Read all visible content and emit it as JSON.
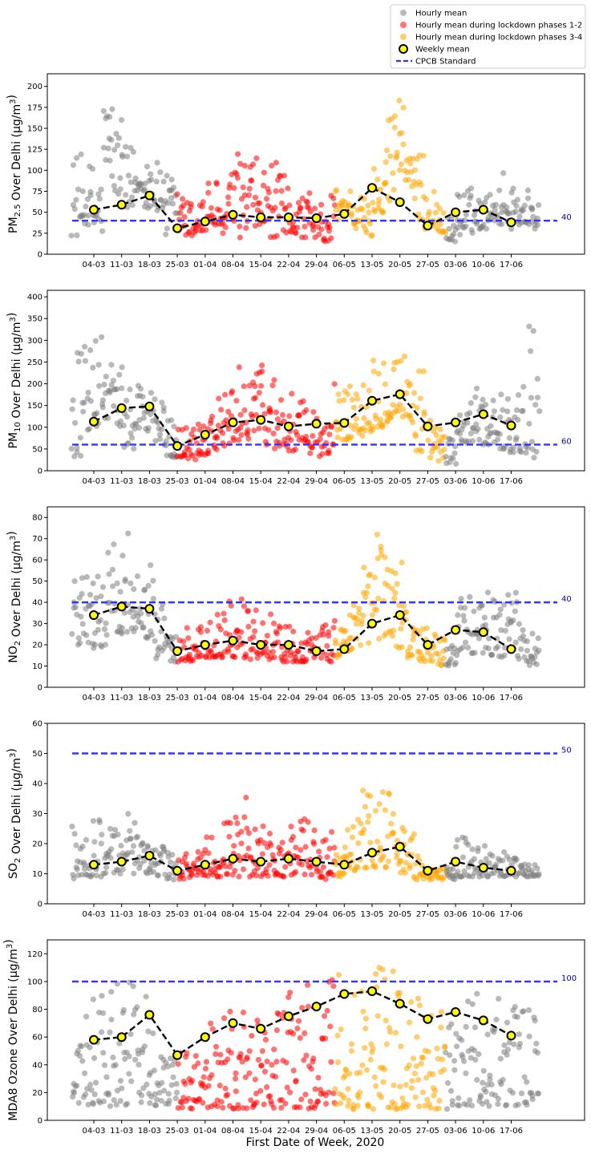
{
  "colors": {
    "hourly": "#808080",
    "lockdown_1_2": "#ff0000",
    "lockdown_3_4": "#ffa500",
    "weekly_fill": "#ffff00",
    "standard": "#3333ff",
    "standard_label": "#0000cc"
  },
  "legend": {
    "items": [
      {
        "key": "hourly",
        "label": "Hourly mean"
      },
      {
        "key": "lockdown_1_2",
        "label": "Hourly mean during lockdown phases 1-2"
      },
      {
        "key": "lockdown_3_4",
        "label": "Hourly mean during lockdown phases 3-4"
      },
      {
        "key": "weekly",
        "label": "Weekly mean"
      },
      {
        "key": "standard",
        "label": "CPCB Standard"
      }
    ]
  },
  "xlabel": "First Date of Week, 2020",
  "chart_data": [
    {
      "type": "scatter",
      "ylabel_prefix": "PM",
      "ylabel_sub": "2.5",
      "ylabel_suffix": " Over Delhi (μg/m",
      "ylabel_sup": "3",
      "ylabel_end": ")",
      "ylim": [
        0,
        215
      ],
      "yticks": [
        "0",
        "25",
        "50",
        "75",
        "100",
        "125",
        "150",
        "175",
        "200"
      ],
      "categories": [
        "04-03",
        "11-03",
        "18-03",
        "25-03",
        "01-04",
        "08-04",
        "15-04",
        "22-04",
        "29-04",
        "06-05",
        "13-05",
        "20-05",
        "27-05",
        "03-06",
        "10-06",
        "17-06"
      ],
      "weekly_mean": [
        53,
        59,
        70,
        31,
        39,
        47,
        44,
        44,
        43,
        48,
        79,
        62,
        34,
        50,
        53,
        38
      ],
      "standard": 40,
      "standard_label": "40",
      "hourly_pattern": [
        [
          22,
          120
        ],
        [
          35,
          110
        ],
        [
          25,
          100
        ],
        [
          90,
          190
        ],
        [
          70,
          160
        ],
        [
          40,
          130
        ],
        [
          75,
          95
        ],
        [
          55,
          130
        ],
        [
          50,
          110
        ],
        [
          20,
          95
        ],
        [
          25,
          80
        ],
        [
          20,
          65
        ],
        [
          25,
          75
        ],
        [
          30,
          90
        ],
        [
          25,
          60
        ],
        [
          35,
          100
        ],
        [
          20,
          125
        ],
        [
          25,
          115
        ],
        [
          30,
          105
        ],
        [
          20,
          110
        ],
        [
          15,
          95
        ],
        [
          25,
          70
        ],
        [
          20,
          75
        ],
        [
          20,
          60
        ],
        [
          15,
          45
        ],
        [
          40,
          80
        ],
        [
          45,
          80
        ],
        [
          30,
          75
        ],
        [
          20,
          70
        ],
        [
          50,
          110
        ],
        [
          60,
          180
        ],
        [
          100,
          200
        ],
        [
          80,
          150
        ],
        [
          30,
          120
        ],
        [
          30,
          85
        ],
        [
          25,
          60
        ],
        [
          15,
          45
        ],
        [
          20,
          80
        ],
        [
          25,
          80
        ],
        [
          30,
          70
        ],
        [
          40,
          75
        ],
        [
          35,
          100
        ],
        [
          30,
          90
        ],
        [
          35,
          80
        ],
        [
          30,
          65
        ]
      ]
    },
    {
      "type": "scatter",
      "ylabel_prefix": "PM",
      "ylabel_sub": "10",
      "ylabel_suffix": " Over Delhi (μg/m",
      "ylabel_sup": "3",
      "ylabel_end": ")",
      "ylim": [
        0,
        415
      ],
      "yticks": [
        "0",
        "50",
        "100",
        "150",
        "200",
        "250",
        "300",
        "350",
        "400"
      ],
      "categories": [
        "04-03",
        "11-03",
        "18-03",
        "25-03",
        "01-04",
        "08-04",
        "15-04",
        "22-04",
        "29-04",
        "06-05",
        "13-05",
        "20-05",
        "27-05",
        "03-06",
        "10-06",
        "17-06"
      ],
      "weekly_mean": [
        113,
        144,
        148,
        57,
        83,
        111,
        117,
        102,
        108,
        110,
        161,
        176,
        102,
        111,
        130,
        104
      ],
      "standard": 60,
      "standard_label": "60",
      "hourly_pattern": [
        [
          30,
          280
        ],
        [
          90,
          300
        ],
        [
          100,
          310
        ],
        [
          120,
          260
        ],
        [
          100,
          240
        ],
        [
          50,
          200
        ],
        [
          90,
          220
        ],
        [
          80,
          200
        ],
        [
          60,
          160
        ],
        [
          30,
          120
        ],
        [
          30,
          110
        ],
        [
          25,
          110
        ],
        [
          35,
          140
        ],
        [
          40,
          160
        ],
        [
          50,
          180
        ],
        [
          60,
          200
        ],
        [
          70,
          240
        ],
        [
          80,
          300
        ],
        [
          60,
          250
        ],
        [
          50,
          240
        ],
        [
          40,
          200
        ],
        [
          40,
          180
        ],
        [
          40,
          160
        ],
        [
          30,
          150
        ],
        [
          30,
          110
        ],
        [
          60,
          220
        ],
        [
          70,
          200
        ],
        [
          80,
          220
        ],
        [
          90,
          260
        ],
        [
          100,
          280
        ],
        [
          110,
          300
        ],
        [
          120,
          300
        ],
        [
          100,
          280
        ],
        [
          40,
          270
        ],
        [
          30,
          120
        ],
        [
          20,
          100
        ],
        [
          15,
          80
        ],
        [
          60,
          150
        ],
        [
          60,
          170
        ],
        [
          60,
          190
        ],
        [
          60,
          200
        ],
        [
          50,
          180
        ],
        [
          40,
          170
        ],
        [
          40,
          200
        ],
        [
          30,
          360
        ]
      ]
    },
    {
      "type": "scatter",
      "ylabel_prefix": "NO",
      "ylabel_sub": "2",
      "ylabel_suffix": " Over Delhi (μg/m",
      "ylabel_sup": "3",
      "ylabel_end": ")",
      "ylim": [
        0,
        85
      ],
      "yticks": [
        "0",
        "10",
        "20",
        "30",
        "40",
        "50",
        "60",
        "70",
        "80"
      ],
      "categories": [
        "04-03",
        "11-03",
        "18-03",
        "25-03",
        "01-04",
        "08-04",
        "15-04",
        "22-04",
        "29-04",
        "06-05",
        "13-05",
        "20-05",
        "27-05",
        "03-06",
        "10-06",
        "17-06"
      ],
      "weekly_mean": [
        34,
        38,
        37,
        17,
        20,
        22,
        20,
        20,
        17,
        18,
        30,
        34,
        20,
        27,
        26,
        18
      ],
      "standard": 40,
      "standard_label": "40",
      "hourly_pattern": [
        [
          20,
          65
        ],
        [
          20,
          55
        ],
        [
          18,
          60
        ],
        [
          20,
          65
        ],
        [
          25,
          70
        ],
        [
          25,
          78
        ],
        [
          28,
          70
        ],
        [
          20,
          60
        ],
        [
          12,
          45
        ],
        [
          12,
          25
        ],
        [
          12,
          25
        ],
        [
          12,
          28
        ],
        [
          14,
          30
        ],
        [
          14,
          32
        ],
        [
          14,
          40
        ],
        [
          14,
          45
        ],
        [
          14,
          42
        ],
        [
          13,
          40
        ],
        [
          14,
          40
        ],
        [
          13,
          38
        ],
        [
          12,
          30
        ],
        [
          12,
          28
        ],
        [
          12,
          28
        ],
        [
          12,
          25
        ],
        [
          12,
          30
        ],
        [
          14,
          32
        ],
        [
          16,
          40
        ],
        [
          18,
          42
        ],
        [
          20,
          60
        ],
        [
          22,
          78
        ],
        [
          24,
          75
        ],
        [
          18,
          65
        ],
        [
          14,
          40
        ],
        [
          12,
          30
        ],
        [
          12,
          28
        ],
        [
          10,
          25
        ],
        [
          10,
          22
        ],
        [
          15,
          45
        ],
        [
          16,
          45
        ],
        [
          16,
          40
        ],
        [
          15,
          45
        ],
        [
          14,
          50
        ],
        [
          14,
          45
        ],
        [
          12,
          30
        ],
        [
          10,
          28
        ]
      ]
    },
    {
      "type": "scatter",
      "ylabel_prefix": "SO",
      "ylabel_sub": "2",
      "ylabel_suffix": " Over Delhi (μg/m",
      "ylabel_sup": "3",
      "ylabel_end": ")",
      "ylim": [
        0,
        60
      ],
      "yticks": [
        "0",
        "10",
        "20",
        "30",
        "40",
        "50",
        "60"
      ],
      "categories": [
        "04-03",
        "11-03",
        "18-03",
        "25-03",
        "01-04",
        "08-04",
        "15-04",
        "22-04",
        "29-04",
        "06-05",
        "13-05",
        "20-05",
        "27-05",
        "03-06",
        "10-06",
        "17-06"
      ],
      "weekly_mean": [
        13,
        14,
        16,
        11,
        13,
        15,
        14,
        15,
        14,
        13,
        17,
        19,
        11,
        14,
        12,
        11
      ],
      "standard": 50,
      "standard_label": "50",
      "hourly_pattern": [
        [
          8,
          27
        ],
        [
          9,
          22
        ],
        [
          9,
          30
        ],
        [
          10,
          25
        ],
        [
          10,
          28
        ],
        [
          10,
          30
        ],
        [
          11,
          28
        ],
        [
          10,
          26
        ],
        [
          9,
          20
        ],
        [
          8,
          17
        ],
        [
          8,
          17
        ],
        [
          8,
          18
        ],
        [
          9,
          20
        ],
        [
          9,
          25
        ],
        [
          9,
          28
        ],
        [
          9,
          30
        ],
        [
          9,
          40
        ],
        [
          9,
          32
        ],
        [
          9,
          28
        ],
        [
          9,
          25
        ],
        [
          9,
          24
        ],
        [
          9,
          26
        ],
        [
          9,
          30
        ],
        [
          8,
          25
        ],
        [
          8,
          22
        ],
        [
          9,
          25
        ],
        [
          10,
          25
        ],
        [
          11,
          30
        ],
        [
          12,
          38
        ],
        [
          12,
          42
        ],
        [
          12,
          40
        ],
        [
          10,
          30
        ],
        [
          9,
          25
        ],
        [
          8,
          18
        ],
        [
          8,
          14
        ],
        [
          8,
          12
        ],
        [
          8,
          12
        ],
        [
          9,
          25
        ],
        [
          9,
          22
        ],
        [
          9,
          20
        ],
        [
          9,
          18
        ],
        [
          9,
          18
        ],
        [
          9,
          16
        ],
        [
          9,
          14
        ],
        [
          9,
          13
        ]
      ]
    },
    {
      "type": "scatter",
      "ylabel_prefix": "MDA8 Ozone Over Delhi (μg/m",
      "ylabel_sub": "",
      "ylabel_suffix": "",
      "ylabel_sup": "3",
      "ylabel_end": ")",
      "ylim": [
        0,
        130
      ],
      "yticks": [
        "0",
        "20",
        "40",
        "60",
        "80",
        "100",
        "120"
      ],
      "categories": [
        "04-03",
        "11-03",
        "18-03",
        "25-03",
        "01-04",
        "08-04",
        "15-04",
        "22-04",
        "29-04",
        "06-05",
        "13-05",
        "20-05",
        "27-05",
        "03-06",
        "10-06",
        "17-06"
      ],
      "weekly_mean": [
        58,
        60,
        76,
        47,
        60,
        70,
        66,
        75,
        82,
        91,
        93,
        84,
        73,
        78,
        72,
        61
      ],
      "standard": 100,
      "standard_label": "100",
      "hourly_pattern": [
        [
          10,
          75
        ],
        [
          10,
          80
        ],
        [
          10,
          90
        ],
        [
          10,
          95
        ],
        [
          10,
          100
        ],
        [
          10,
          108
        ],
        [
          12,
          100
        ],
        [
          10,
          90
        ],
        [
          8,
          60
        ],
        [
          8,
          45
        ],
        [
          8,
          50
        ],
        [
          8,
          55
        ],
        [
          8,
          62
        ],
        [
          8,
          70
        ],
        [
          8,
          75
        ],
        [
          8,
          80
        ],
        [
          8,
          85
        ],
        [
          8,
          80
        ],
        [
          8,
          82
        ],
        [
          8,
          88
        ],
        [
          8,
          92
        ],
        [
          8,
          95
        ],
        [
          8,
          98
        ],
        [
          8,
          100
        ],
        [
          10,
          100
        ],
        [
          10,
          105
        ],
        [
          10,
          108
        ],
        [
          8,
          105
        ],
        [
          8,
          110
        ],
        [
          8,
          118
        ],
        [
          8,
          110
        ],
        [
          8,
          100
        ],
        [
          8,
          95
        ],
        [
          8,
          90
        ],
        [
          8,
          85
        ],
        [
          8,
          80
        ],
        [
          8,
          80
        ],
        [
          10,
          100
        ],
        [
          10,
          98
        ],
        [
          10,
          95
        ],
        [
          10,
          95
        ],
        [
          10,
          90
        ],
        [
          10,
          85
        ],
        [
          10,
          80
        ],
        [
          10,
          75
        ]
      ]
    }
  ]
}
